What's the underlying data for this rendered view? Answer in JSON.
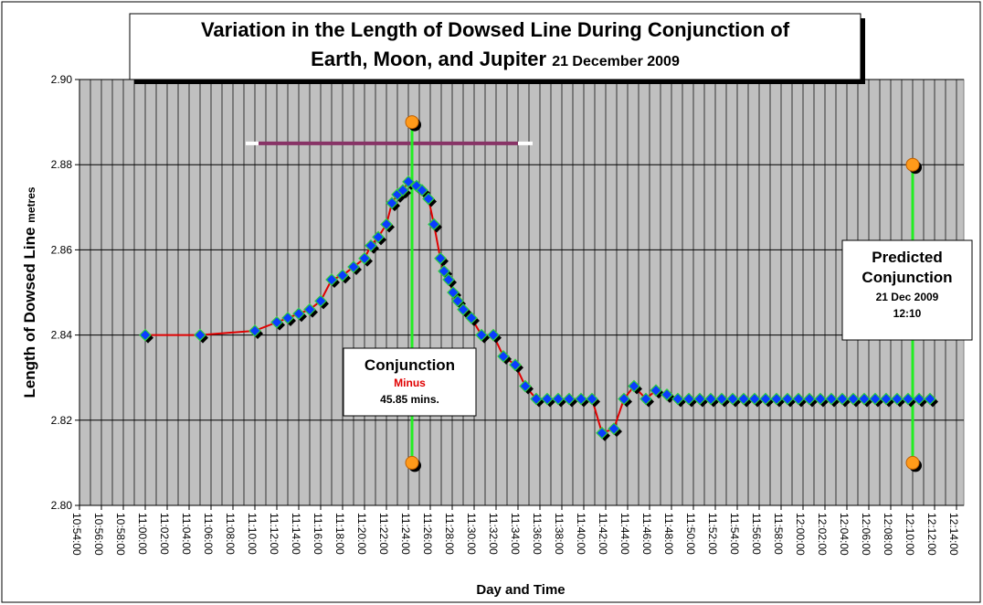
{
  "chart_data": {
    "type": "line",
    "title": "Variation in the Length of Dowsed Line During Conjunction of",
    "title_line2": "Earth, Moon, and Jupiter",
    "title_date": "21 December 2009",
    "ylabel": "Length of Dowsed Line",
    "ylabel_unit": "metres",
    "xlabel": "Day and Time",
    "xlim": [
      "10:54:00",
      "12:14:40"
    ],
    "xticks": [
      "10:54:00",
      "10:56:00",
      "10:58:00",
      "11:00:00",
      "11:02:00",
      "11:04:00",
      "11:06:00",
      "11:08:00",
      "11:10:00",
      "11:12:00",
      "11:14:00",
      "11:16:00",
      "11:18:00",
      "11:20:00",
      "11:22:00",
      "11:24:00",
      "11:26:00",
      "11:28:00",
      "11:30:00",
      "11:32:00",
      "11:34:00",
      "11:36:00",
      "11:38:00",
      "11:40:00",
      "11:42:00",
      "11:44:00",
      "11:46:00",
      "11:48:00",
      "11:50:00",
      "11:52:00",
      "11:54:00",
      "11:56:00",
      "11:58:00",
      "12:00:00",
      "12:02:00",
      "12:04:00",
      "12:06:00",
      "12:08:00",
      "12:10:00",
      "12:12:00",
      "12:14:00"
    ],
    "ylim": [
      2.8,
      2.9
    ],
    "yticks": [
      {
        "value": 2.8,
        "label": "2.80"
      },
      {
        "value": 2.82,
        "label": "2.82"
      },
      {
        "value": 2.84,
        "label": "2.84"
      },
      {
        "value": 2.86,
        "label": "2.86"
      },
      {
        "value": 2.88,
        "label": "2.88"
      },
      {
        "value": 2.9,
        "label": "2.90"
      }
    ],
    "grid": true,
    "series": [
      {
        "color": "#e00000",
        "marker_color": "#0a3cff",
        "x": [
          "11:00:00",
          "11:05:00",
          "11:10:00",
          "11:12:00",
          "11:13:00",
          "11:14:00",
          "11:15:00",
          "11:16:00",
          "11:17:00",
          "11:18:00",
          "11:19:00",
          "11:20:00",
          "11:20:35",
          "11:21:15",
          "11:22:00",
          "11:22:30",
          "11:23:00",
          "11:23:30",
          "11:24:00",
          "11:24:45",
          "11:25:15",
          "11:25:50",
          "11:26:20",
          "11:26:55",
          "11:27:15",
          "11:27:40",
          "11:28:05",
          "11:28:30",
          "11:29:00",
          "11:29:45",
          "11:30:40",
          "11:31:45",
          "11:32:40",
          "11:33:45",
          "11:34:40",
          "11:35:40",
          "11:36:40",
          "11:37:40",
          "11:38:40",
          "11:39:45",
          "11:40:45",
          "11:41:40",
          "11:42:45",
          "11:43:40",
          "11:44:35",
          "11:45:40",
          "11:46:35",
          "11:47:35",
          "11:48:35",
          "11:49:35",
          "11:50:35",
          "11:51:35",
          "11:52:35",
          "11:53:35",
          "11:54:35",
          "11:55:35",
          "11:56:35",
          "11:57:35",
          "11:58:35",
          "11:59:35",
          "12:00:35",
          "12:01:35",
          "12:02:35",
          "12:03:35",
          "12:04:35",
          "12:05:35",
          "12:06:35",
          "12:07:35",
          "12:08:35",
          "12:09:35",
          "12:10:35",
          "12:11:35"
        ],
        "values": [
          2.84,
          2.84,
          2.841,
          2.843,
          2.844,
          2.845,
          2.846,
          2.848,
          2.853,
          2.854,
          2.856,
          2.858,
          2.861,
          2.863,
          2.866,
          2.871,
          2.873,
          2.874,
          2.876,
          2.875,
          2.874,
          2.872,
          2.866,
          2.858,
          2.855,
          2.853,
          2.85,
          2.848,
          2.846,
          2.844,
          2.84,
          2.84,
          2.835,
          2.833,
          2.828,
          2.825,
          2.825,
          2.825,
          2.825,
          2.825,
          2.825,
          2.817,
          2.818,
          2.825,
          2.828,
          2.825,
          2.827,
          2.826,
          2.825,
          2.825,
          2.825,
          2.825,
          2.825,
          2.825,
          2.825,
          2.825,
          2.825,
          2.825,
          2.825,
          2.825,
          2.825,
          2.825,
          2.825,
          2.825,
          2.825,
          2.825,
          2.825,
          2.825,
          2.825,
          2.825,
          2.825,
          2.825
        ]
      }
    ],
    "vertical_lines": [
      {
        "x": "11:24:20",
        "y": [
          2.81,
          2.89
        ],
        "color": "#22ee22"
      },
      {
        "x": "12:10:00",
        "y": [
          2.81,
          2.88
        ],
        "color": "#22ee22"
      }
    ],
    "horizontal_lines": [
      {
        "y": 2.885,
        "x": [
          "11:10:20",
          "11:34:00"
        ],
        "color": "#883366"
      }
    ],
    "annotations": [
      {
        "lines": [
          "Conjunction",
          "Minus",
          "45.85 mins."
        ]
      },
      {
        "lines": [
          "Predicted",
          "Conjunction",
          "21 Dec 2009",
          "12:10"
        ]
      }
    ]
  }
}
